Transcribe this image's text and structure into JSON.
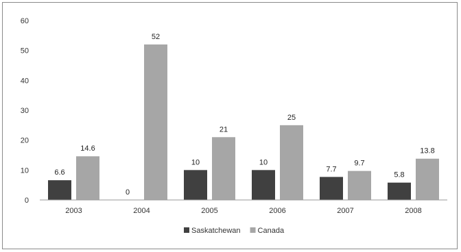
{
  "chart_data": {
    "type": "bar",
    "categories": [
      "2003",
      "2004",
      "2005",
      "2006",
      "2007",
      "2008"
    ],
    "series": [
      {
        "name": "Saskatchewan",
        "values": [
          6.6,
          0,
          10,
          10,
          7.7,
          5.8
        ],
        "labels": [
          "6.6",
          "0",
          "10",
          "10",
          "7.7",
          "5.8"
        ],
        "color": "#404040"
      },
      {
        "name": "Canada",
        "values": [
          14.6,
          52,
          21,
          25,
          9.7,
          13.8
        ],
        "labels": [
          "14.6",
          "52",
          "21",
          "25",
          "9.7",
          "13.8"
        ],
        "color": "#a6a6a6"
      }
    ],
    "ylim": [
      0,
      60
    ],
    "yticks": [
      "0",
      "10",
      "20",
      "30",
      "40",
      "50",
      "60"
    ],
    "ytick_values": [
      0,
      10,
      20,
      30,
      40,
      50,
      60
    ],
    "grid": false,
    "legend": "bottom-center",
    "title": "",
    "xlabel": "",
    "ylabel": ""
  }
}
